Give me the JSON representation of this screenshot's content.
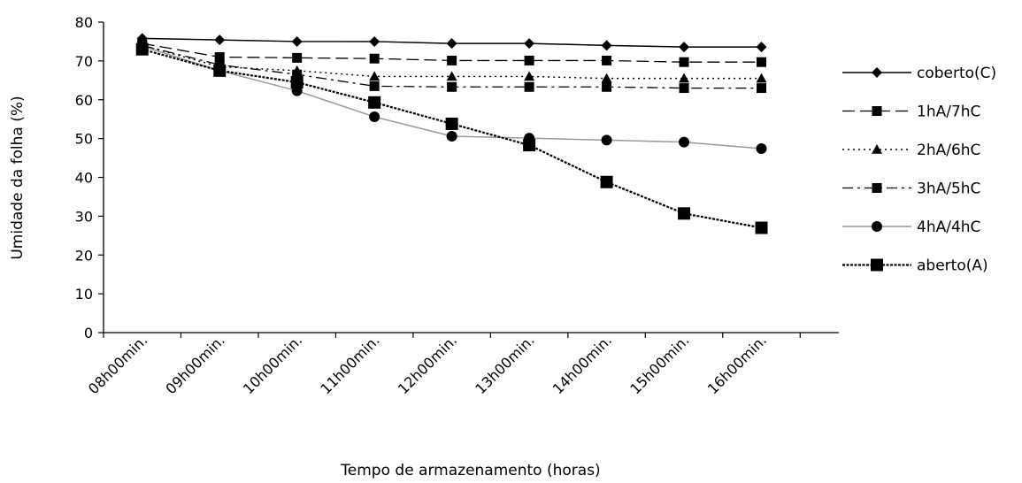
{
  "chart_data": {
    "type": "line",
    "title": "",
    "xlabel": "Tempo de armazenamento (horas)",
    "ylabel": "Umidade da folha (%)",
    "ylim": [
      0,
      80
    ],
    "yticks": [
      0,
      10,
      20,
      30,
      40,
      50,
      60,
      70,
      80
    ],
    "categories": [
      "08h00min.",
      "09h00min.",
      "10h00min.",
      "11h00min.",
      "12h00min.",
      "13h00min.",
      "14h00min.",
      "15h00min.",
      "16h00min."
    ],
    "legend_position": "right",
    "grid": false,
    "series": [
      {
        "name": "coberto(C)",
        "values": [
          75.8,
          75.4,
          75.0,
          75.0,
          74.5,
          74.5,
          74.0,
          73.6,
          73.6
        ],
        "marker": "diamond",
        "dash": "solid",
        "color": "#000000"
      },
      {
        "name": "1hA/7hC",
        "values": [
          74.5,
          71.0,
          70.8,
          70.6,
          70.1,
          70.1,
          70.1,
          69.7,
          69.7
        ],
        "marker": "square",
        "dash": "dashed",
        "color": "#000000"
      },
      {
        "name": "2hA/6hC",
        "values": [
          74.0,
          68.5,
          67.5,
          66.0,
          66.0,
          66.0,
          65.5,
          65.5,
          65.5
        ],
        "marker": "triangle",
        "dash": "dotted",
        "color": "#000000"
      },
      {
        "name": "3hA/5hC",
        "values": [
          74.0,
          69.0,
          66.5,
          63.5,
          63.3,
          63.3,
          63.3,
          63.0,
          63.0
        ],
        "marker": "square",
        "dash": "dashdot",
        "color": "#000000"
      },
      {
        "name": "4hA/4hC",
        "values": [
          73.8,
          67.5,
          62.3,
          55.6,
          50.6,
          50.1,
          49.6,
          49.1,
          47.4
        ],
        "marker": "circle",
        "dash": "solid",
        "color": "#999999"
      },
      {
        "name": "aberto(A)",
        "values": [
          73.0,
          67.5,
          64.5,
          59.3,
          53.8,
          48.3,
          38.8,
          30.7,
          27.0
        ],
        "marker": "square",
        "dash": "heavy",
        "color": "#000000"
      }
    ]
  }
}
